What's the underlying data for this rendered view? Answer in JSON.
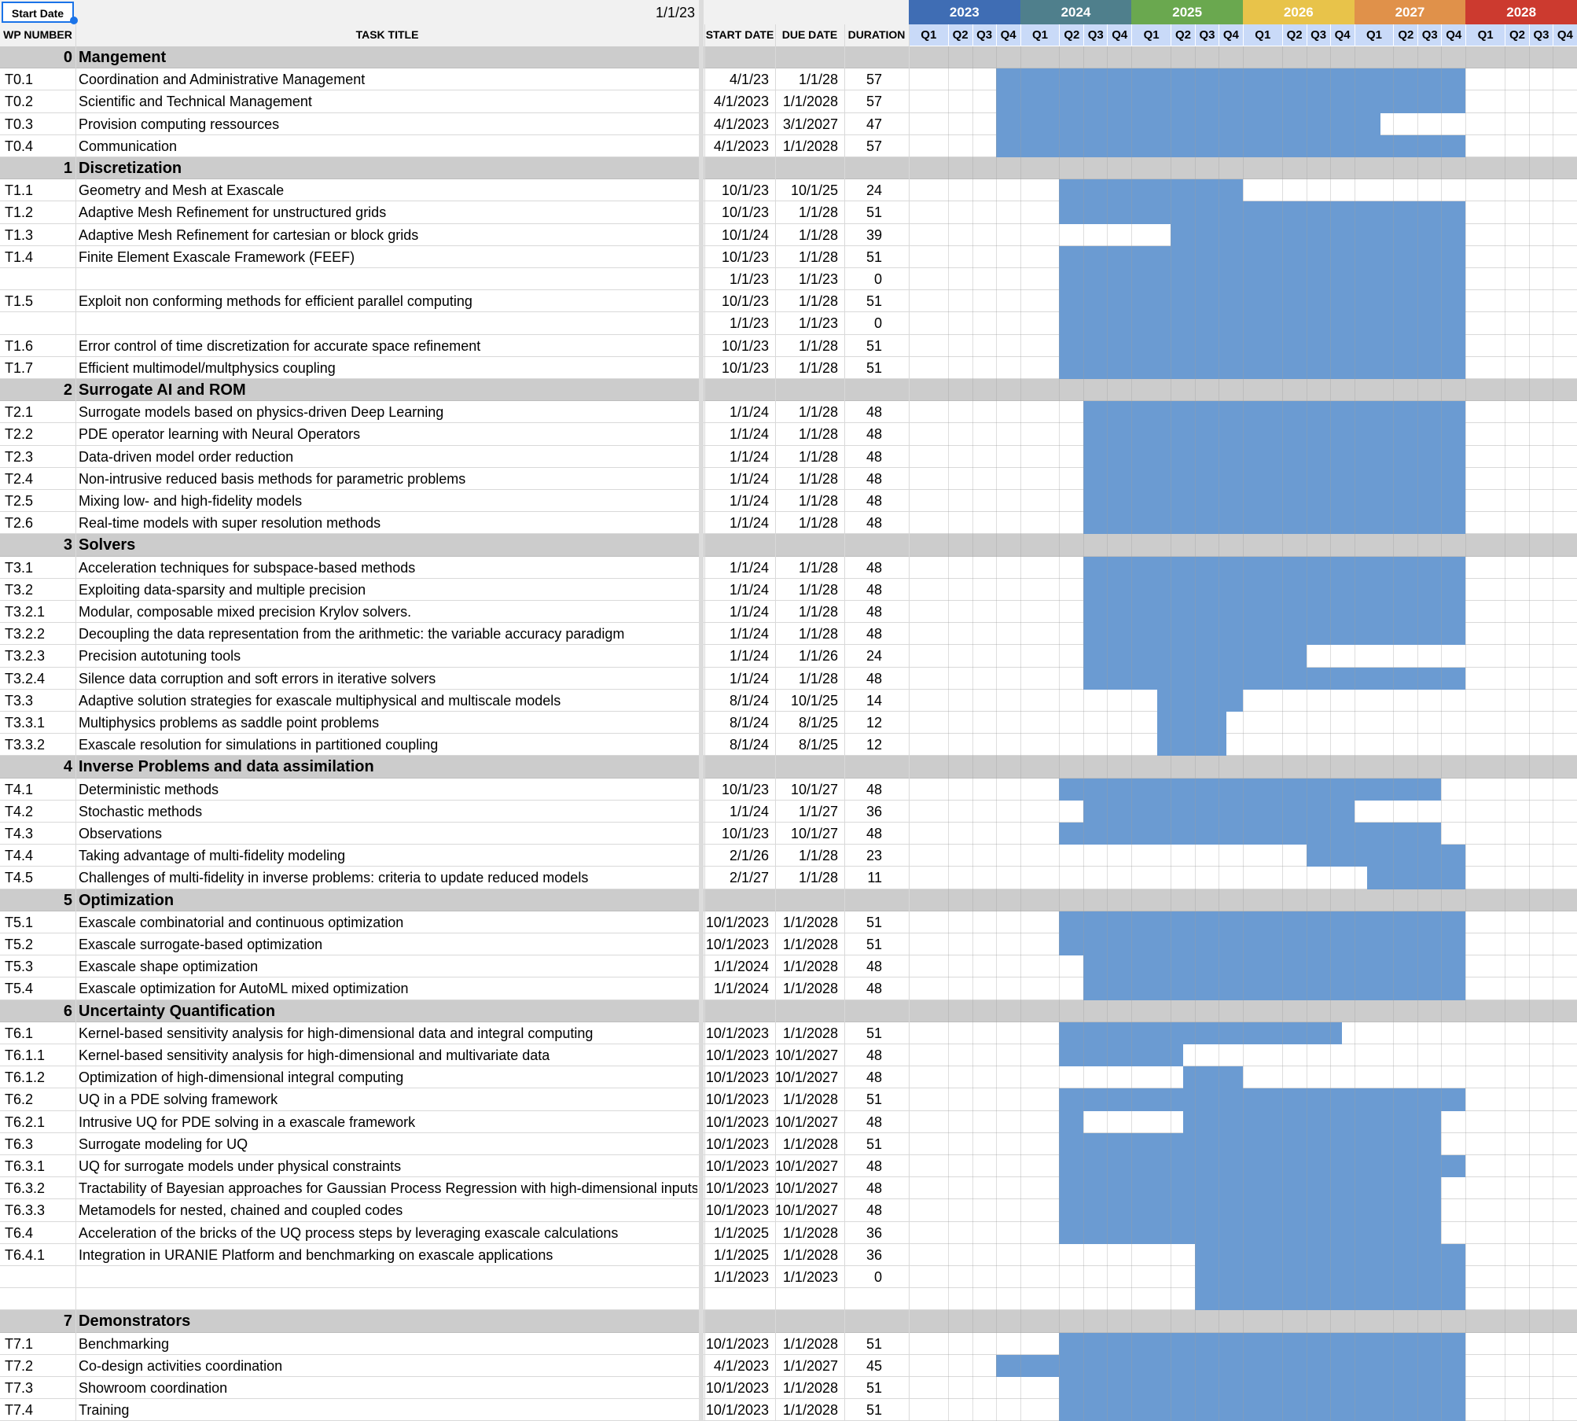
{
  "start_date_label": "Start Date",
  "start_date_value": "1/1/23",
  "columns": {
    "wp": "WP NUMBER",
    "task": "TASK TITLE",
    "start": "START DATE",
    "due": "DUE DATE",
    "duration": "DURATION"
  },
  "years": [
    {
      "label": "2023",
      "color": "#3f6db4"
    },
    {
      "label": "2024",
      "color": "#4f7f8c"
    },
    {
      "label": "2025",
      "color": "#6aa84f"
    },
    {
      "label": "2026",
      "color": "#e8c34a"
    },
    {
      "label": "2027",
      "color": "#e0914a"
    },
    {
      "label": "2028",
      "color": "#cc3a2f"
    }
  ],
  "quarter_labels": [
    "Q1",
    "Q2",
    "Q3",
    "Q4"
  ],
  "colors": {
    "bar": "#6b9bd2",
    "section_bg": "#cccccc",
    "header_bg": "#f1f1f1",
    "quarter_bg": "#c9daf8",
    "grid": "#d9d9d9",
    "selected": "#1a73e8"
  },
  "rows": [
    {
      "type": "section",
      "wp": "0",
      "title": "Mangement"
    },
    {
      "type": "task",
      "wp": "T0.1",
      "title": "Coordination and Administrative Management",
      "start": "4/1/23",
      "due": "1/1/28",
      "duration": "57",
      "bars": [
        [
          3,
          20
        ]
      ]
    },
    {
      "type": "task",
      "wp": "T0.2",
      "title": "Scientific and Technical Management",
      "start": "4/1/2023",
      "due": "1/1/2028",
      "duration": "57",
      "bars": [
        [
          3,
          20
        ]
      ]
    },
    {
      "type": "task",
      "wp": "T0.3",
      "title": "Provision computing ressources",
      "start": "4/1/2023",
      "due": "3/1/2027",
      "duration": "47",
      "bars": [
        [
          3,
          16.667
        ]
      ]
    },
    {
      "type": "task",
      "wp": "T0.4",
      "title": "Communication",
      "start": "4/1/2023",
      "due": "1/1/2028",
      "duration": "57",
      "bars": [
        [
          3,
          20
        ]
      ]
    },
    {
      "type": "section",
      "wp": "1",
      "title": "Discretization"
    },
    {
      "type": "task",
      "wp": "T1.1",
      "title": "Geometry and Mesh at Exascale",
      "start": "10/1/23",
      "due": "10/1/25",
      "duration": "24",
      "bars": [
        [
          5,
          12
        ]
      ]
    },
    {
      "type": "task",
      "wp": "T1.2",
      "title": "Adaptive Mesh Refinement for unstructured grids",
      "start": "10/1/23",
      "due": "1/1/28",
      "duration": "51",
      "bars": [
        [
          5,
          20
        ]
      ]
    },
    {
      "type": "task",
      "wp": "T1.3",
      "title": "Adaptive Mesh Refinement for cartesian or block grids",
      "start": "10/1/24",
      "due": "1/1/28",
      "duration": "39",
      "bars": [
        [
          9,
          20
        ]
      ]
    },
    {
      "type": "task",
      "wp": "T1.4",
      "title": "Finite Element Exascale Framework (FEEF)",
      "start": "10/1/23",
      "due": "1/1/28",
      "duration": "51",
      "bars": [
        [
          5,
          20
        ]
      ]
    },
    {
      "type": "task",
      "wp": "",
      "title": "",
      "start": "1/1/23",
      "due": "1/1/23",
      "duration": "0",
      "bars": [
        [
          5,
          20
        ]
      ]
    },
    {
      "type": "task",
      "wp": "T1.5",
      "title": "Exploit non conforming methods for efficient parallel computing",
      "start": "10/1/23",
      "due": "1/1/28",
      "duration": "51",
      "bars": [
        [
          5,
          20
        ]
      ]
    },
    {
      "type": "task",
      "wp": "",
      "title": "",
      "start": "1/1/23",
      "due": "1/1/23",
      "duration": "0",
      "bars": [
        [
          5,
          20
        ]
      ]
    },
    {
      "type": "task",
      "wp": "T1.6",
      "title": "Error control of time discretization for accurate space refinement",
      "start": "10/1/23",
      "due": "1/1/28",
      "duration": "51",
      "bars": [
        [
          5,
          20
        ]
      ]
    },
    {
      "type": "task",
      "wp": "T1.7",
      "title": "Efficient multimodel/multphysics coupling",
      "start": "10/1/23",
      "due": "1/1/28",
      "duration": "51",
      "bars": [
        [
          5,
          20
        ]
      ]
    },
    {
      "type": "section",
      "wp": "2",
      "title": "Surrogate AI and ROM"
    },
    {
      "type": "task",
      "wp": "T2.1",
      "title": "Surrogate models based on physics-driven Deep Learning",
      "start": "1/1/24",
      "due": "1/1/28",
      "duration": "48",
      "bars": [
        [
          6,
          20
        ]
      ]
    },
    {
      "type": "task",
      "wp": "T2.2",
      "title": "PDE operator learning with Neural Operators",
      "start": "1/1/24",
      "due": "1/1/28",
      "duration": "48",
      "bars": [
        [
          6,
          20
        ]
      ]
    },
    {
      "type": "task",
      "wp": "T2.3",
      "title": "Data-driven model order reduction",
      "start": "1/1/24",
      "due": "1/1/28",
      "duration": "48",
      "bars": [
        [
          6,
          20
        ]
      ]
    },
    {
      "type": "task",
      "wp": "T2.4",
      "title": "Non-intrusive reduced basis methods for parametric problems",
      "start": "1/1/24",
      "due": "1/1/28",
      "duration": "48",
      "bars": [
        [
          6,
          20
        ]
      ]
    },
    {
      "type": "task",
      "wp": "T2.5",
      "title": "Mixing low- and high-fidelity models",
      "start": "1/1/24",
      "due": "1/1/28",
      "duration": "48",
      "bars": [
        [
          6,
          20
        ]
      ]
    },
    {
      "type": "task",
      "wp": "T2.6",
      "title": "Real-time models with super resolution methods",
      "start": "1/1/24",
      "due": "1/1/28",
      "duration": "48",
      "bars": [
        [
          6,
          20
        ]
      ]
    },
    {
      "type": "section",
      "wp": "3",
      "title": "Solvers"
    },
    {
      "type": "task",
      "wp": "T3.1",
      "title": "Acceleration techniques for subspace-based methods",
      "start": "1/1/24",
      "due": "1/1/28",
      "duration": "48",
      "bars": [
        [
          6,
          20
        ]
      ]
    },
    {
      "type": "task",
      "wp": "T3.2",
      "title": "Exploiting data-sparsity and multiple precision",
      "start": "1/1/24",
      "due": "1/1/28",
      "duration": "48",
      "bars": [
        [
          6,
          20
        ]
      ]
    },
    {
      "type": "task",
      "wp": "T3.2.1",
      "title": "Modular, composable mixed precision Krylov solvers.",
      "start": "1/1/24",
      "due": "1/1/28",
      "duration": "48",
      "bars": [
        [
          6,
          20
        ]
      ]
    },
    {
      "type": "task",
      "wp": "T3.2.2",
      "title": "Decoupling the data representation from the arithmetic: the variable accuracy paradigm",
      "start": "1/1/24",
      "due": "1/1/28",
      "duration": "48",
      "bars": [
        [
          6,
          20
        ]
      ]
    },
    {
      "type": "task",
      "wp": "T3.2.3",
      "title": "Precision autotuning tools",
      "start": "1/1/24",
      "due": "1/1/26",
      "duration": "24",
      "bars": [
        [
          6,
          14
        ]
      ]
    },
    {
      "type": "task",
      "wp": "T3.2.4",
      "title": "Silence data corruption and soft errors in iterative solvers",
      "start": "1/1/24",
      "due": "1/1/28",
      "duration": "48",
      "bars": [
        [
          6,
          20
        ]
      ]
    },
    {
      "type": "task",
      "wp": "T3.3",
      "title": "Adaptive solution strategies for exascale multiphysical and multiscale models",
      "start": "8/1/24",
      "due": "10/1/25",
      "duration": "14",
      "bars": [
        [
          8.667,
          12
        ]
      ]
    },
    {
      "type": "task",
      "wp": "T3.3.1",
      "title": "Multiphysics problems as saddle point problems",
      "start": "8/1/24",
      "due": "8/1/25",
      "duration": "12",
      "bars": [
        [
          8.667,
          11.333
        ]
      ]
    },
    {
      "type": "task",
      "wp": "T3.3.2",
      "title": "Exascale resolution for simulations in partitioned coupling",
      "start": "8/1/24",
      "due": "8/1/25",
      "duration": "12",
      "bars": [
        [
          8.667,
          11.333
        ]
      ]
    },
    {
      "type": "section",
      "wp": "4",
      "title": "Inverse Problems and data assimilation"
    },
    {
      "type": "task",
      "wp": "T4.1",
      "title": "Deterministic methods",
      "start": "10/1/23",
      "due": "10/1/27",
      "duration": "48",
      "bars": [
        [
          5,
          19
        ]
      ]
    },
    {
      "type": "task",
      "wp": "T4.2",
      "title": "Stochastic methods",
      "start": "1/1/24",
      "due": "1/1/27",
      "duration": "36",
      "bars": [
        [
          6,
          16
        ]
      ]
    },
    {
      "type": "task",
      "wp": "T4.3",
      "title": "Observations",
      "start": "10/1/23",
      "due": "10/1/27",
      "duration": "48",
      "bars": [
        [
          5,
          19
        ]
      ]
    },
    {
      "type": "task",
      "wp": "T4.4",
      "title": "Taking advantage of multi-fidelity modeling",
      "start": "2/1/26",
      "due": "1/1/28",
      "duration": "23",
      "bars": [
        [
          14,
          20
        ]
      ]
    },
    {
      "type": "task",
      "wp": "T4.5",
      "title": "Challenges of multi-fidelity in inverse problems: criteria to update reduced models",
      "start": "2/1/27",
      "due": "1/1/28",
      "duration": "11",
      "bars": [
        [
          16.333,
          20
        ]
      ]
    },
    {
      "type": "section",
      "wp": "5",
      "title": "Optimization"
    },
    {
      "type": "task",
      "wp": "T5.1",
      "title": "Exascale combinatorial and continuous optimization",
      "start": "10/1/2023",
      "due": "1/1/2028",
      "duration": "51",
      "bars": [
        [
          5,
          20
        ]
      ]
    },
    {
      "type": "task",
      "wp": "T5.2",
      "title": "Exascale surrogate-based optimization",
      "start": "10/1/2023",
      "due": "1/1/2028",
      "duration": "51",
      "bars": [
        [
          5,
          20
        ]
      ]
    },
    {
      "type": "task",
      "wp": "T5.3",
      "title": "Exascale shape optimization",
      "start": "1/1/2024",
      "due": "1/1/2028",
      "duration": "48",
      "bars": [
        [
          6,
          20
        ]
      ]
    },
    {
      "type": "task",
      "wp": "T5.4",
      "title": "Exascale optimization for AutoML mixed optimization",
      "start": "1/1/2024",
      "due": "1/1/2028",
      "duration": "48",
      "bars": [
        [
          6,
          20
        ]
      ]
    },
    {
      "type": "section",
      "wp": "6",
      "title": "Uncertainty Quantification"
    },
    {
      "type": "task",
      "wp": "T6.1",
      "title": "Kernel-based sensitivity analysis for high-dimensional data and integral computing",
      "start": "10/1/2023",
      "due": "1/1/2028",
      "duration": "51",
      "bars": [
        [
          5,
          15.5
        ]
      ]
    },
    {
      "type": "task",
      "wp": "T6.1.1",
      "title": "Kernel-based sensitivity analysis for high-dimensional and multivariate data",
      "start": "10/1/2023",
      "due": "10/1/2027",
      "duration": "48",
      "bars": [
        [
          5,
          9.5
        ]
      ]
    },
    {
      "type": "task",
      "wp": "T6.1.2",
      "title": "Optimization of high-dimensional integral computing",
      "start": "10/1/2023",
      "due": "10/1/2027",
      "duration": "48",
      "bars": [
        [
          9.5,
          12
        ]
      ]
    },
    {
      "type": "task",
      "wp": "T6.2",
      "title": "UQ in a PDE solving framework",
      "start": "10/1/2023",
      "due": "1/1/2028",
      "duration": "51",
      "bars": [
        [
          5,
          20
        ]
      ]
    },
    {
      "type": "task",
      "wp": "T6.2.1",
      "title": "Intrusive UQ for PDE solving in a exascale framework",
      "start": "10/1/2023",
      "due": "10/1/2027",
      "duration": "48",
      "bars": [
        [
          5,
          6
        ],
        [
          9.5,
          19
        ]
      ]
    },
    {
      "type": "task",
      "wp": "T6.3",
      "title": "Surrogate modeling for UQ",
      "start": "10/1/2023",
      "due": "1/1/2028",
      "duration": "51",
      "bars": [
        [
          5,
          19
        ]
      ]
    },
    {
      "type": "task",
      "wp": "T6.3.1",
      "title": "UQ for surrogate models under physical constraints",
      "start": "10/1/2023",
      "due": "10/1/2027",
      "duration": "48",
      "bars": [
        [
          5,
          20
        ]
      ]
    },
    {
      "type": "task",
      "wp": "T6.3.2",
      "title": "Tractability of Bayesian approaches for Gaussian Process Regression with high-dimensional inputs",
      "start": "10/1/2023",
      "due": "10/1/2027",
      "duration": "48",
      "bars": [
        [
          5,
          19
        ]
      ]
    },
    {
      "type": "task",
      "wp": "T6.3.3",
      "title": "Metamodels for nested, chained and coupled codes",
      "start": "10/1/2023",
      "due": "10/1/2027",
      "duration": "48",
      "bars": [
        [
          5,
          19
        ]
      ]
    },
    {
      "type": "task",
      "wp": "T6.4",
      "title": " Acceleration of the bricks of the UQ process steps by leveraging exascale calculations",
      "start": "1/1/2025",
      "due": "1/1/2028",
      "duration": "36",
      "bars": [
        [
          5,
          19
        ]
      ]
    },
    {
      "type": "task",
      "wp": "T6.4.1",
      "title": "Integration in URANIE Platform and benchmarking on exascale applications",
      "start": "1/1/2025",
      "due": "1/1/2028",
      "duration": "36",
      "bars": [
        [
          10,
          20
        ]
      ]
    },
    {
      "type": "task",
      "wp": "",
      "title": "",
      "start": "1/1/2023",
      "due": "1/1/2023",
      "duration": "0",
      "bars": [
        [
          10,
          20
        ]
      ]
    },
    {
      "type": "task",
      "wp": "",
      "title": "",
      "start": "",
      "due": "",
      "duration": "",
      "bars": [
        [
          10,
          20
        ]
      ]
    },
    {
      "type": "section",
      "wp": "7",
      "title": "Demonstrators"
    },
    {
      "type": "task",
      "wp": "T7.1",
      "title": "Benchmarking",
      "start": "10/1/2023",
      "due": "1/1/2028",
      "duration": "51",
      "bars": [
        [
          5,
          20
        ]
      ]
    },
    {
      "type": "task",
      "wp": "T7.2",
      "title": "Co-design activities coordination",
      "start": "4/1/2023",
      "due": "1/1/2027",
      "duration": "45",
      "bars": [
        [
          3,
          20
        ]
      ]
    },
    {
      "type": "task",
      "wp": "T7.3",
      "title": "Showroom coordination",
      "start": "10/1/2023",
      "due": "1/1/2028",
      "duration": "51",
      "bars": [
        [
          5,
          20
        ]
      ]
    },
    {
      "type": "task",
      "wp": "T7.4",
      "title": "Training",
      "start": "10/1/2023",
      "due": "1/1/2028",
      "duration": "51",
      "bars": [
        [
          5,
          20
        ]
      ]
    }
  ]
}
